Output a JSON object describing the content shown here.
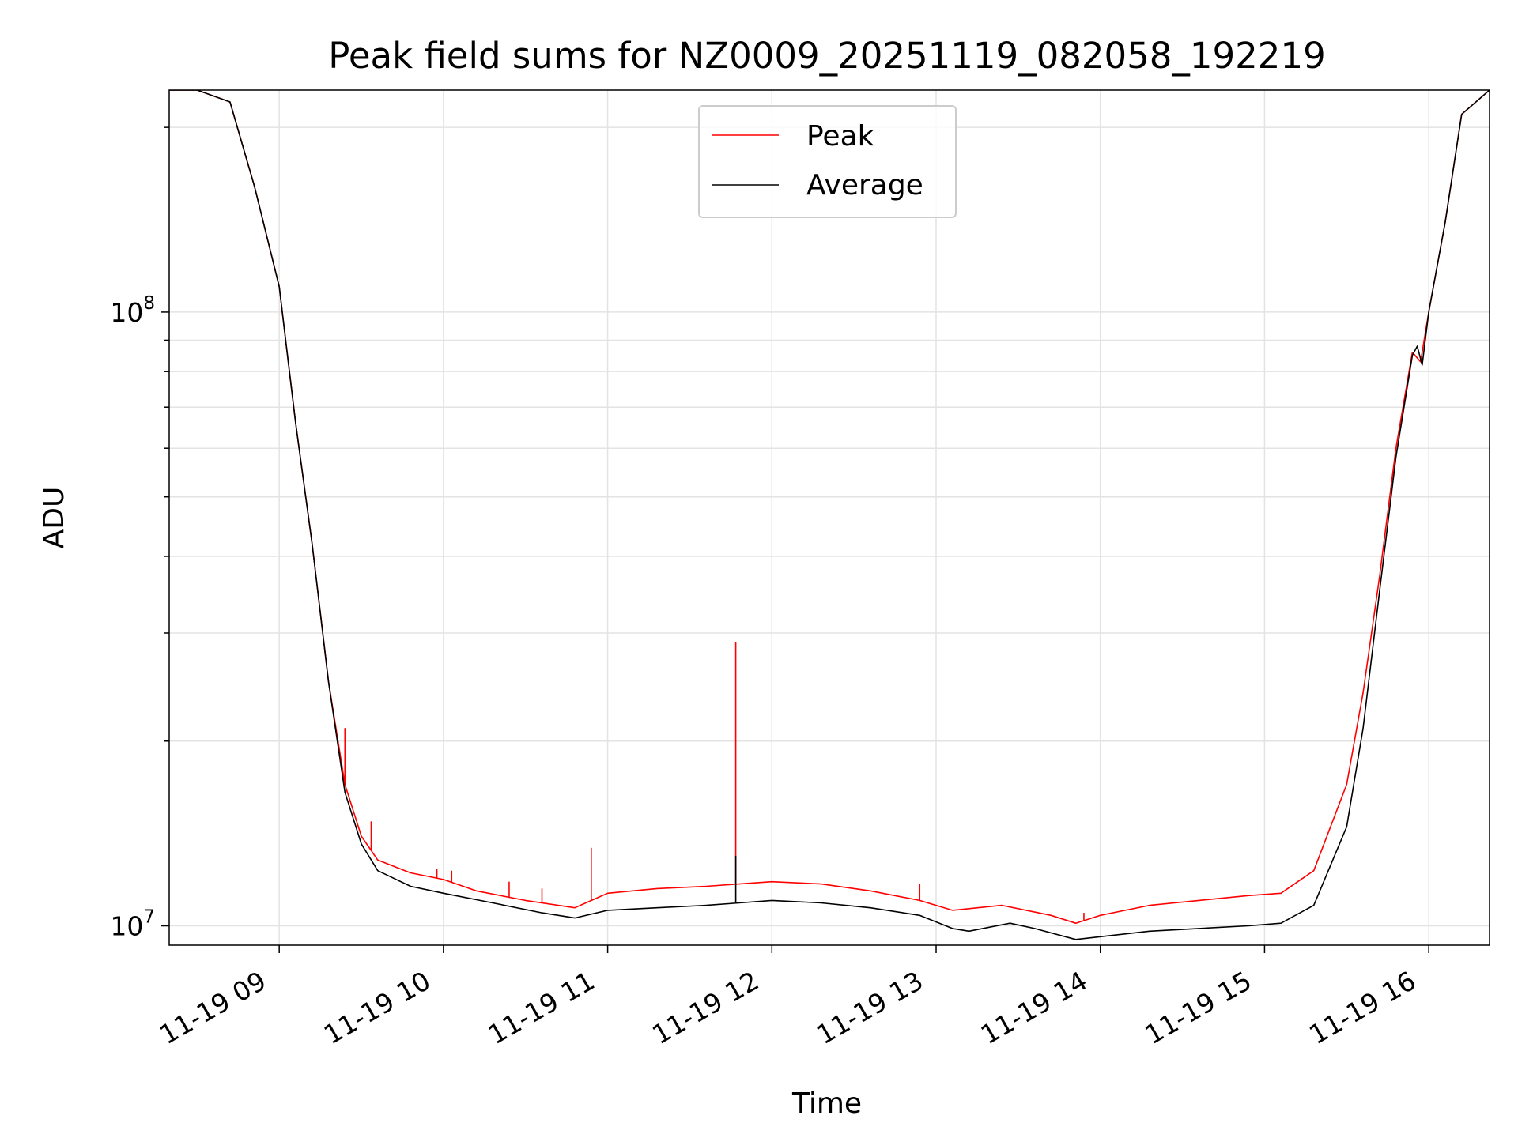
{
  "chart_data": {
    "type": "line",
    "title": "Peak field sums for NZ0009_20251119_082058_192219",
    "xlabel": "Time",
    "ylabel": "ADU",
    "yscale": "log",
    "xlim": [
      8.33,
      16.37
    ],
    "ylim": [
      9300000,
      230000000
    ],
    "grid": true,
    "legend_position": "top-center",
    "x_ticks": [
      {
        "value": 9,
        "label": "11-19 09"
      },
      {
        "value": 10,
        "label": "11-19 10"
      },
      {
        "value": 11,
        "label": "11-19 11"
      },
      {
        "value": 12,
        "label": "11-19 12"
      },
      {
        "value": 13,
        "label": "11-19 13"
      },
      {
        "value": 14,
        "label": "11-19 14"
      },
      {
        "value": 15,
        "label": "11-19 15"
      },
      {
        "value": 16,
        "label": "11-19 16"
      }
    ],
    "y_ticks": [
      {
        "value": 10000000,
        "base": "10",
        "exp": "7"
      },
      {
        "value": 100000000,
        "base": "10",
        "exp": "8"
      }
    ],
    "series": [
      {
        "name": "Peak",
        "color": "#ff0000",
        "x": [
          8.33,
          8.5,
          8.7,
          8.85,
          9.0,
          9.05,
          9.1,
          9.2,
          9.3,
          9.4,
          9.5,
          9.6,
          9.8,
          10.0,
          10.2,
          10.5,
          10.8,
          11.0,
          11.3,
          11.6,
          11.8,
          12.0,
          12.3,
          12.6,
          12.9,
          13.1,
          13.4,
          13.7,
          13.85,
          14.0,
          14.3,
          14.6,
          14.9,
          15.1,
          15.3,
          15.5,
          15.6,
          15.7,
          15.8,
          15.9,
          15.95,
          16.0,
          16.1,
          16.2,
          16.37
        ],
        "y": [
          230000000,
          230000000,
          220000000,
          160000000,
          110000000,
          85000000,
          66000000,
          42000000,
          25000000,
          17000000,
          14000000,
          12800000,
          12200000,
          11900000,
          11400000,
          11000000,
          10700000,
          11300000,
          11500000,
          11600000,
          11700000,
          11800000,
          11700000,
          11400000,
          11000000,
          10600000,
          10800000,
          10400000,
          10100000,
          10400000,
          10800000,
          11000000,
          11200000,
          11300000,
          12300000,
          17000000,
          24000000,
          37000000,
          60000000,
          86000000,
          83000000,
          100000000,
          140000000,
          210000000,
          230000000
        ],
        "spikes": [
          {
            "x": 9.4,
            "y": 21000000
          },
          {
            "x": 9.56,
            "y": 14800000
          },
          {
            "x": 9.96,
            "y": 12400000
          },
          {
            "x": 10.05,
            "y": 12300000
          },
          {
            "x": 10.4,
            "y": 11800000
          },
          {
            "x": 10.6,
            "y": 11500000
          },
          {
            "x": 10.9,
            "y": 13400000
          },
          {
            "x": 11.78,
            "y": 29000000
          },
          {
            "x": 12.9,
            "y": 11700000
          },
          {
            "x": 13.9,
            "y": 10500000
          }
        ]
      },
      {
        "name": "Average",
        "color": "#000000",
        "x": [
          8.33,
          8.5,
          8.7,
          8.85,
          9.0,
          9.05,
          9.1,
          9.2,
          9.3,
          9.4,
          9.5,
          9.6,
          9.8,
          10.0,
          10.3,
          10.6,
          10.8,
          11.0,
          11.3,
          11.6,
          11.8,
          12.0,
          12.3,
          12.6,
          12.9,
          13.1,
          13.2,
          13.45,
          13.6,
          13.85,
          14.0,
          14.3,
          14.6,
          14.9,
          15.1,
          15.3,
          15.5,
          15.6,
          15.7,
          15.8,
          15.9,
          15.93,
          15.96,
          16.0,
          16.1,
          16.2,
          16.37
        ],
        "y": [
          230000000,
          230000000,
          220000000,
          160000000,
          110000000,
          85000000,
          66000000,
          42000000,
          25000000,
          16500000,
          13600000,
          12300000,
          11600000,
          11300000,
          10900000,
          10500000,
          10300000,
          10600000,
          10700000,
          10800000,
          10900000,
          11000000,
          10900000,
          10700000,
          10400000,
          9900000,
          9800000,
          10100000,
          9900000,
          9500000,
          9600000,
          9800000,
          9900000,
          10000000,
          10100000,
          10800000,
          14500000,
          21000000,
          35000000,
          58000000,
          85000000,
          88000000,
          82000000,
          100000000,
          140000000,
          210000000,
          230000000
        ],
        "spikes": [
          {
            "x": 11.78,
            "y": 13000000
          }
        ]
      }
    ]
  }
}
